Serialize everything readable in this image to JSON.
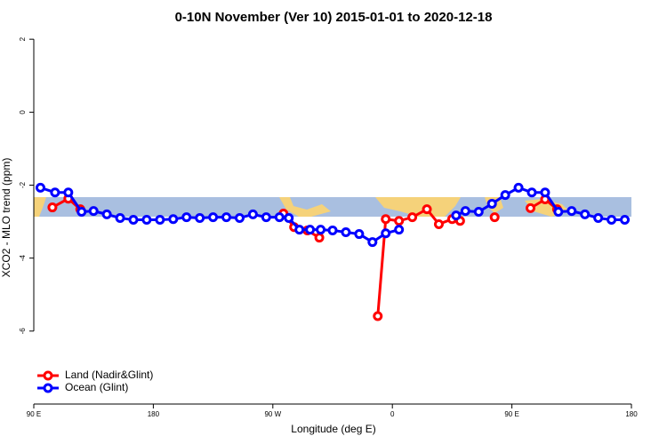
{
  "chart_data": {
    "type": "line",
    "title": "0-10N November (Ver 10)   2015-01-01 to 2020-12-18",
    "x_label": "Longitude (deg E)",
    "y_label": "XCO2 - MLO trend (ppm)",
    "xlim": [
      90,
      540
    ],
    "ylim": [
      -8,
      2.15
    ],
    "xticks": [
      {
        "value": 90,
        "label": "90 E"
      },
      180,
      {
        "value": 270,
        "label": "90 W"
      },
      {
        "value": 360,
        "label": "0"
      },
      {
        "value": 450,
        "label": "90 E"
      },
      {
        "value": 540,
        "label": "180"
      }
    ],
    "yticks": [
      -6,
      -4,
      -2,
      0,
      2
    ],
    "legend": "bottomleft",
    "series": [
      {
        "name": "Land (Nadir&Glint)",
        "color": "#ff0000",
        "x": [
          104,
          116,
          125,
          null,
          278,
          286,
          296,
          305,
          null,
          349,
          355,
          365,
          375,
          386,
          395,
          405,
          411,
          null,
          437,
          null,
          464,
          475,
          484
        ],
        "values": [
          -2.61,
          -2.37,
          -2.66,
          null,
          -2.78,
          -3.15,
          -3.24,
          -3.44,
          null,
          -5.59,
          -2.93,
          -2.98,
          -2.88,
          -2.66,
          -3.07,
          -2.93,
          -2.98,
          null,
          -2.88,
          null,
          -2.63,
          -2.39,
          -2.66
        ]
      },
      {
        "name": "Ocean (Glint)",
        "color": "#0000ff",
        "x": [
          95,
          106,
          116,
          126,
          135,
          145,
          155,
          165,
          175,
          185,
          195,
          205,
          215,
          225,
          235,
          245,
          255,
          265,
          275,
          282,
          290,
          298,
          306,
          315,
          325,
          335,
          345,
          355,
          365,
          null,
          408,
          415,
          425,
          435,
          445,
          455,
          465,
          475,
          485,
          495,
          505,
          515,
          525,
          535
        ],
        "values": [
          -2.07,
          -2.2,
          -2.2,
          -2.73,
          -2.71,
          -2.8,
          -2.9,
          -2.95,
          -2.95,
          -2.95,
          -2.93,
          -2.88,
          -2.9,
          -2.88,
          -2.88,
          -2.9,
          -2.8,
          -2.88,
          -2.88,
          -2.9,
          -3.22,
          -3.22,
          -3.22,
          -3.24,
          -3.29,
          -3.34,
          -3.56,
          -3.32,
          -3.22,
          null,
          -2.83,
          -2.71,
          -2.73,
          -2.51,
          -2.27,
          -2.07,
          -2.2,
          -2.2,
          -2.73,
          -2.71,
          -2.8,
          -2.9,
          -2.95,
          -2.95
        ]
      }
    ]
  }
}
